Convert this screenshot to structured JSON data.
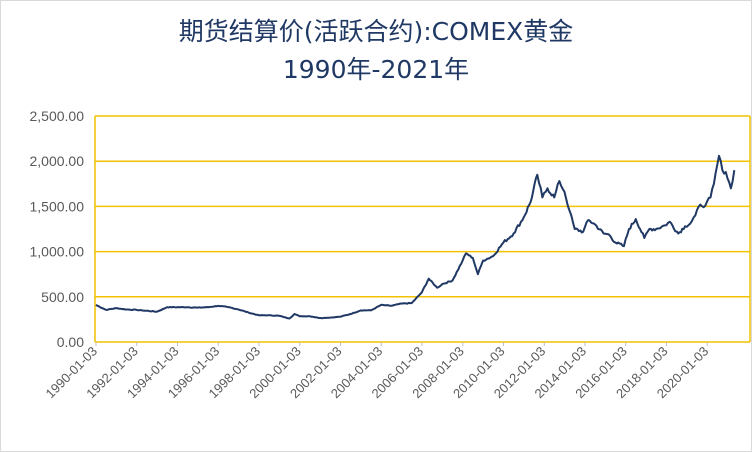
{
  "chart_data": {
    "type": "line",
    "title": "期货结算价(活跃合约):COMEX黄金",
    "subtitle": "1990年-2021年",
    "xlabel": "",
    "ylabel": "",
    "ylim": [
      0,
      2500
    ],
    "y_ticks": [
      "0.00",
      "500.00",
      "1,000.00",
      "1,500.00",
      "2,000.00",
      "2,500.00"
    ],
    "x_ticks": [
      "1990-01-03",
      "1992-01-03",
      "1994-01-03",
      "1996-01-03",
      "1998-01-03",
      "2000-01-03",
      "2002-01-03",
      "2004-01-03",
      "2006-01-03",
      "2008-01-03",
      "2010-01-03",
      "2012-01-03",
      "2014-01-03",
      "2016-01-03",
      "2018-01-03",
      "2020-01-03"
    ],
    "grid": true,
    "line_color": "#1f3864",
    "grid_color": "#f2c200",
    "series": [
      {
        "x": [
          "1990-01",
          "1990-07",
          "1991-01",
          "1991-07",
          "1992-01",
          "1992-07",
          "1993-01",
          "1993-07",
          "1994-01",
          "1994-07",
          "1995-01",
          "1995-07",
          "1996-01",
          "1996-07",
          "1997-01",
          "1997-07",
          "1998-01",
          "1998-07",
          "1999-01",
          "1999-07",
          "1999-10",
          "2000-01",
          "2000-07",
          "2001-01",
          "2001-07",
          "2002-01",
          "2002-07",
          "2003-01",
          "2003-07",
          "2004-01",
          "2004-07",
          "2005-01",
          "2005-07",
          "2006-01",
          "2006-05",
          "2006-10",
          "2007-01",
          "2007-07",
          "2008-01",
          "2008-03",
          "2008-07",
          "2008-10",
          "2009-01",
          "2009-07",
          "2010-01",
          "2010-07",
          "2011-01",
          "2011-05",
          "2011-09",
          "2011-12",
          "2012-03",
          "2012-07",
          "2012-10",
          "2013-01",
          "2013-04",
          "2013-07",
          "2013-12",
          "2014-03",
          "2014-07",
          "2014-12",
          "2015-03",
          "2015-07",
          "2015-12",
          "2016-03",
          "2016-07",
          "2016-12",
          "2017-03",
          "2017-07",
          "2017-12",
          "2018-03",
          "2018-08",
          "2018-12",
          "2019-03",
          "2019-06",
          "2019-09",
          "2019-12",
          "2020-03",
          "2020-05",
          "2020-08",
          "2020-10",
          "2020-12",
          "2021-03",
          "2021-05"
        ],
        "y": [
          410,
          355,
          375,
          360,
          355,
          345,
          335,
          385,
          385,
          385,
          380,
          385,
          400,
          385,
          360,
          325,
          295,
          295,
          290,
          260,
          310,
          285,
          285,
          265,
          270,
          280,
          310,
          350,
          350,
          410,
          400,
          425,
          430,
          550,
          700,
          600,
          640,
          680,
          900,
          980,
          930,
          750,
          900,
          950,
          1100,
          1200,
          1380,
          1550,
          1850,
          1600,
          1700,
          1600,
          1780,
          1660,
          1450,
          1250,
          1220,
          1350,
          1300,
          1200,
          1190,
          1100,
          1060,
          1250,
          1360,
          1150,
          1250,
          1250,
          1290,
          1330,
          1200,
          1280,
          1310,
          1400,
          1520,
          1510,
          1600,
          1750,
          2060,
          1900,
          1880,
          1700,
          1900
        ]
      }
    ]
  }
}
